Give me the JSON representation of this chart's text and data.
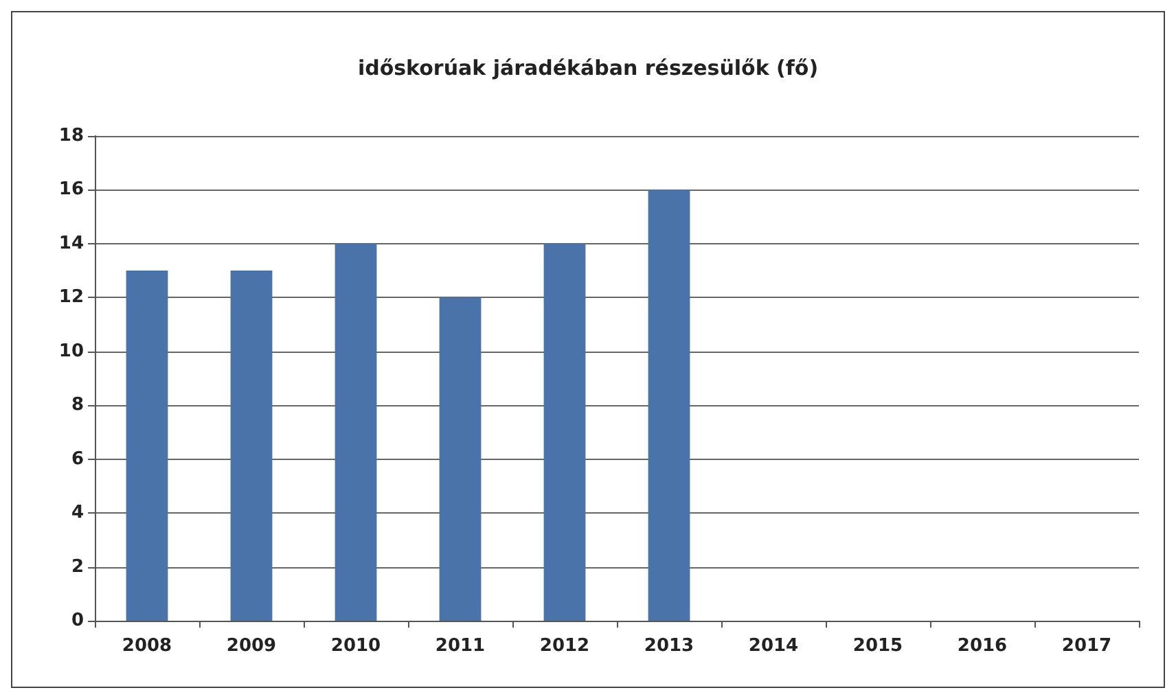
{
  "chart_data": {
    "type": "bar",
    "title": "időskorúak járadékában részesülők (fő)",
    "categories": [
      "2008",
      "2009",
      "2010",
      "2011",
      "2012",
      "2013",
      "2014",
      "2015",
      "2016",
      "2017"
    ],
    "values": [
      13,
      13,
      14,
      12,
      14,
      16,
      null,
      null,
      null,
      null
    ],
    "color": "#4a73a9",
    "ylim": [
      0,
      18
    ],
    "yticks": [
      0,
      2,
      4,
      6,
      8,
      10,
      12,
      14,
      16,
      18
    ],
    "grid": "y"
  }
}
